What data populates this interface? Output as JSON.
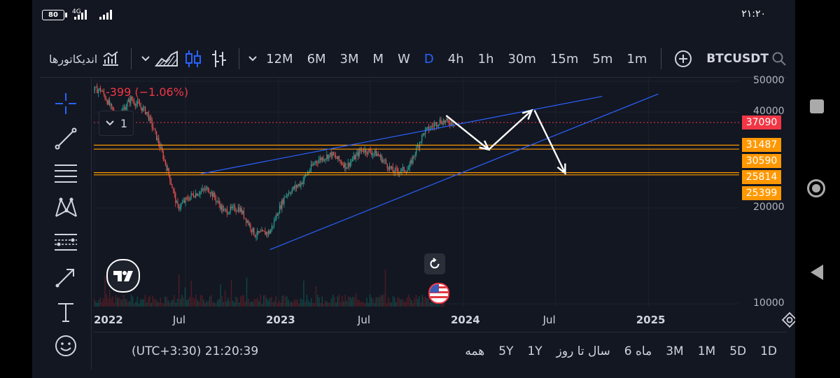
{
  "status_bar": {
    "battery": "80",
    "network": "4G",
    "time": "۲۱:۲۰"
  },
  "toolbar": {
    "indicators_label": "اندیکاتورها",
    "intervals": [
      "12M",
      "6M",
      "3M",
      "M",
      "W",
      "D",
      "4h",
      "1h",
      "30m",
      "15m",
      "5m",
      "1m"
    ],
    "active_interval": "D",
    "symbol": "BTCUSDT",
    "icons": [
      "indicators-icon",
      "chevron-down-icon",
      "area-chart-icon",
      "candles-icon",
      "bars-icon",
      "chevron-down-icon",
      "add-circle-icon",
      "search-icon"
    ]
  },
  "left_tools": [
    "crosshair-icon",
    "trend-line-icon",
    "fib-icon",
    "pattern-icon",
    "prediction-icon",
    "arrow-brush-icon",
    "text-icon",
    "emoji-icon"
  ],
  "legend": {
    "change": "-399 (−1.06%)",
    "collapsed_count": "1"
  },
  "chart_data": {
    "type": "candlestick",
    "symbol": "BTCUSDT",
    "price_axis_labels": [
      "50000",
      "40000",
      "20000",
      "10000"
    ],
    "price_scale": "log",
    "ylim": [
      10000,
      50000
    ],
    "time_axis_labels": [
      "2022",
      "Jul",
      "2023",
      "Jul",
      "2024",
      "Jul",
      "2025"
    ],
    "current_price": "37090",
    "horizontal_levels": [
      "31487",
      "30590",
      "25814",
      "25399"
    ],
    "level_color": "#ff9800",
    "current_price_color": "#f23645",
    "trendline_color": "#2962ff",
    "price_path": [
      [
        "2022-01",
        47000
      ],
      [
        "2022-02",
        38000
      ],
      [
        "2022-03",
        44000
      ],
      [
        "2022-04",
        40000
      ],
      [
        "2022-05",
        30000
      ],
      [
        "2022-06",
        20000
      ],
      [
        "2022-07",
        22000
      ],
      [
        "2022-08",
        23000
      ],
      [
        "2022-09",
        19500
      ],
      [
        "2022-10",
        20000
      ],
      [
        "2022-11",
        16500
      ],
      [
        "2022-12",
        16800
      ],
      [
        "2023-01",
        22000
      ],
      [
        "2023-02",
        24000
      ],
      [
        "2023-03",
        28000
      ],
      [
        "2023-04",
        29500
      ],
      [
        "2023-05",
        27000
      ],
      [
        "2023-06",
        30500
      ],
      [
        "2023-07",
        29500
      ],
      [
        "2023-08",
        26000
      ],
      [
        "2023-09",
        26500
      ],
      [
        "2023-10",
        34500
      ],
      [
        "2023-11",
        37500
      ],
      [
        "2023-12",
        37090
      ]
    ]
  },
  "bottom_bar": {
    "timezone": "(UTC+3:30) 21:20:39",
    "ranges": [
      "همه",
      "5Y",
      "1Y",
      "سال تا روز",
      "6 ماه",
      "3M",
      "1M",
      "5D",
      "1D"
    ]
  },
  "android_nav": [
    "recents-icon",
    "home-icon",
    "back-icon"
  ]
}
